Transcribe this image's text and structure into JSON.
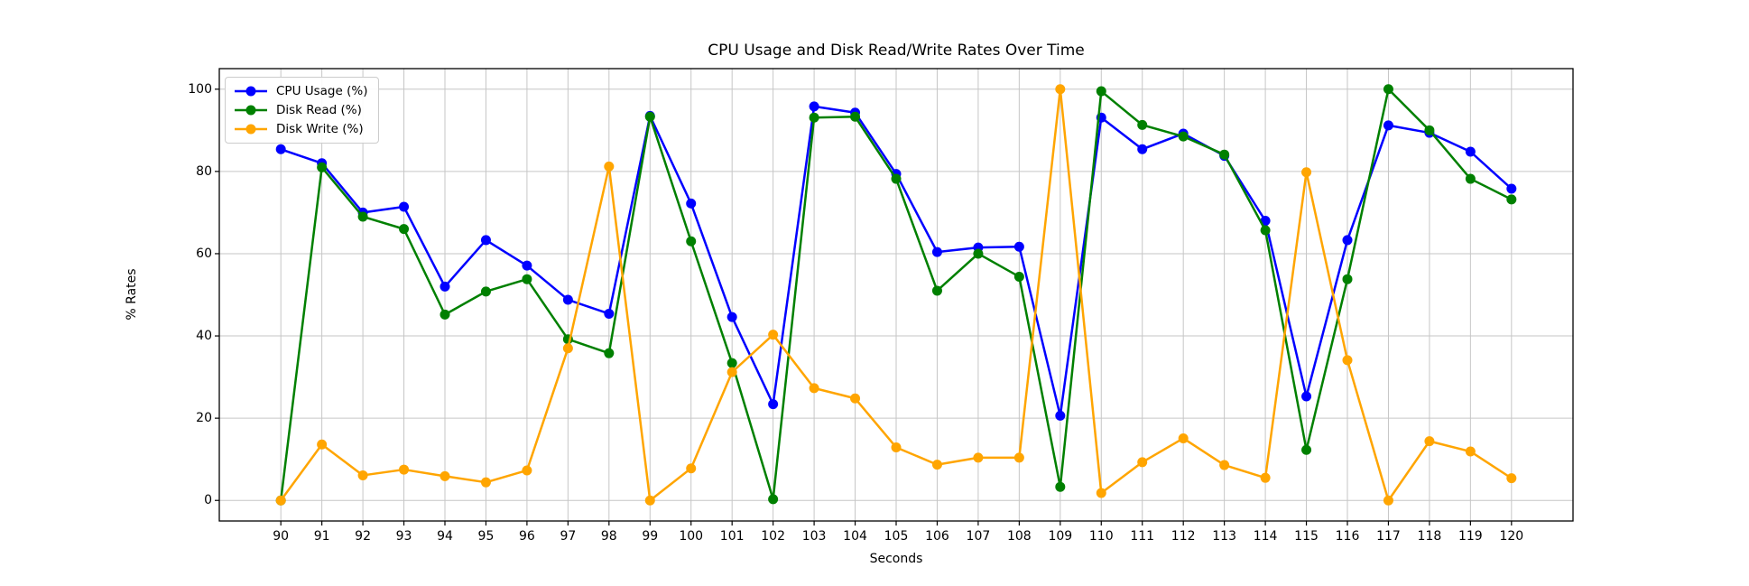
{
  "chart_data": {
    "type": "line",
    "title": "CPU Usage and Disk Read/Write Rates Over Time",
    "xlabel": "Seconds",
    "ylabel": "% Rates",
    "x": [
      90,
      91,
      92,
      93,
      94,
      95,
      96,
      97,
      98,
      99,
      100,
      101,
      102,
      103,
      104,
      105,
      106,
      107,
      108,
      109,
      110,
      111,
      112,
      113,
      114,
      115,
      116,
      117,
      118,
      119,
      120
    ],
    "series": [
      {
        "name": "CPU Usage (%)",
        "color": "#0000ff",
        "values": [
          85.4,
          82.0,
          70.0,
          71.4,
          52.0,
          63.3,
          57.1,
          48.8,
          45.4,
          93.5,
          72.2,
          44.6,
          23.4,
          95.8,
          94.3,
          79.4,
          60.4,
          61.5,
          61.7,
          20.6,
          93.1,
          85.4,
          89.2,
          83.8,
          68.0,
          25.3,
          63.3,
          91.2,
          89.4,
          84.8,
          75.8
        ]
      },
      {
        "name": "Disk Read (%)",
        "color": "#008000",
        "values": [
          0.0,
          81.0,
          69.0,
          66.0,
          45.2,
          50.8,
          53.8,
          39.2,
          35.8,
          93.3,
          63.0,
          33.4,
          0.3,
          93.1,
          93.3,
          78.2,
          51.0,
          60.0,
          54.4,
          3.3,
          99.5,
          91.3,
          88.5,
          84.1,
          65.7,
          12.3,
          53.8,
          100.0,
          90.0,
          78.2,
          73.2
        ]
      },
      {
        "name": "Disk Write (%)",
        "color": "#ffa500",
        "values": [
          0.0,
          13.6,
          6.1,
          7.5,
          5.9,
          4.4,
          7.3,
          37.0,
          81.2,
          0.0,
          7.8,
          31.2,
          40.3,
          27.3,
          24.8,
          12.9,
          8.7,
          10.4,
          10.4,
          100.0,
          1.8,
          9.3,
          15.1,
          8.6,
          5.5,
          79.8,
          34.1,
          0.0,
          14.4,
          11.9,
          5.4
        ]
      }
    ],
    "xticks": [
      90,
      91,
      92,
      93,
      94,
      95,
      96,
      97,
      98,
      99,
      100,
      101,
      102,
      103,
      104,
      105,
      106,
      107,
      108,
      109,
      110,
      111,
      112,
      113,
      114,
      115,
      116,
      117,
      118,
      119,
      120
    ],
    "yticks": [
      0,
      20,
      40,
      60,
      80,
      100
    ],
    "xlim": [
      88.5,
      121.5
    ],
    "ylim": [
      -5,
      105
    ],
    "grid": true,
    "legend_position": "upper left",
    "marker": "o",
    "grid_color": "#c6c6c6",
    "spine_color": "#000000"
  }
}
